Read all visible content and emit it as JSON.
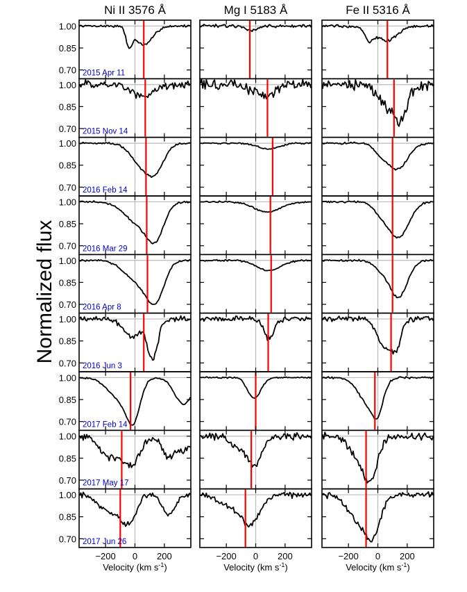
{
  "figure": {
    "ylabel": "Normalized flux",
    "xlabel_main": "Velocity (km s",
    "xlabel_sup": "-1",
    "xlabel_close": ")"
  },
  "chart_data": {
    "type": "line",
    "x_range": [
      -380,
      380
    ],
    "y_range": [
      0.64,
      1.04
    ],
    "x_ticks": [
      -200,
      0,
      200
    ],
    "x_tick_labels": [
      "−200",
      "0",
      "200"
    ],
    "y_ticks": [
      0.7,
      0.85,
      1.0
    ],
    "y_tick_labels": [
      "0.70",
      "0.85",
      "1.00"
    ],
    "grid": false,
    "reference_lines": {
      "y": 1.0,
      "x": 0
    },
    "colors": {
      "spectrum": "#000000",
      "reference": "#bbbbbb",
      "marker": "#ff0000",
      "date_label": "#0000cc"
    },
    "columns": [
      {
        "title": "Ni II 3576 Å",
        "species": "Ni II"
      },
      {
        "title": "Mg I 5183 Å",
        "species": "Mg I"
      },
      {
        "title": "Fe II 5316 Å",
        "species": "Fe II"
      }
    ],
    "epochs": [
      {
        "date": "2015 Apr 11",
        "markers": [
          60,
          -40,
          65
        ],
        "profiles": [
          {
            "noise": 0.01,
            "comps": [
              [
                -40,
                0.12,
                20
              ],
              [
                60,
                0.13,
                60
              ]
            ]
          },
          {
            "noise": 0.012,
            "comps": [
              [
                -20,
                0.03,
                40
              ]
            ]
          },
          {
            "noise": 0.012,
            "comps": [
              [
                -60,
                0.08,
                30
              ],
              [
                60,
                0.1,
                70
              ]
            ]
          }
        ]
      },
      {
        "date": "2015 Nov 14",
        "markers": [
          70,
          80,
          110
        ],
        "profiles": [
          {
            "noise": 0.035,
            "comps": [
              [
                60,
                0.08,
                80
              ]
            ]
          },
          {
            "noise": 0.045,
            "comps": [
              [
                60,
                0.07,
                80
              ]
            ]
          },
          {
            "noise": 0.045,
            "comps": [
              [
                100,
                0.18,
                80
              ],
              [
                160,
                0.12,
                30
              ]
            ]
          }
        ]
      },
      {
        "date": "2016 Feb 14",
        "markers": [
          75,
          115,
          100
        ],
        "profiles": [
          {
            "noise": 0.008,
            "comps": [
              [
                40,
                0.13,
                70
              ],
              [
                140,
                0.17,
                60
              ]
            ]
          },
          {
            "noise": 0.006,
            "comps": [
              [
                90,
                0.04,
                70
              ]
            ]
          },
          {
            "noise": 0.008,
            "comps": [
              [
                10,
                0.05,
                40
              ],
              [
                130,
                0.18,
                70
              ]
            ]
          }
        ]
      },
      {
        "date": "2016 Mar 29",
        "markers": [
          80,
          100,
          100
        ],
        "profiles": [
          {
            "noise": 0.008,
            "comps": [
              [
                20,
                0.14,
                90
              ],
              [
                140,
                0.22,
                60
              ]
            ]
          },
          {
            "noise": 0.006,
            "comps": [
              [
                80,
                0.07,
                90
              ]
            ]
          },
          {
            "noise": 0.008,
            "comps": [
              [
                20,
                0.06,
                50
              ],
              [
                140,
                0.24,
                70
              ]
            ]
          }
        ]
      },
      {
        "date": "2016 Apr 8",
        "markers": [
          85,
          105,
          100
        ],
        "profiles": [
          {
            "noise": 0.008,
            "comps": [
              [
                20,
                0.14,
                90
              ],
              [
                140,
                0.24,
                60
              ]
            ]
          },
          {
            "noise": 0.006,
            "comps": [
              [
                90,
                0.07,
                80
              ]
            ]
          },
          {
            "noise": 0.008,
            "comps": [
              [
                20,
                0.05,
                50
              ],
              [
                140,
                0.25,
                60
              ]
            ]
          }
        ]
      },
      {
        "date": "2016 Jun 3",
        "markers": [
          60,
          85,
          90
        ],
        "profiles": [
          {
            "noise": 0.022,
            "comps": [
              [
                -20,
                0.12,
                60
              ],
              [
                120,
                0.27,
                35
              ]
            ]
          },
          {
            "noise": 0.022,
            "comps": [
              [
                90,
                0.13,
                35
              ]
            ]
          },
          {
            "noise": 0.022,
            "comps": [
              [
                50,
                0.2,
                50
              ],
              [
                130,
                0.16,
                30
              ]
            ]
          }
        ]
      },
      {
        "date": "2017 Feb 14",
        "markers": [
          -30,
          0,
          -20
        ],
        "profiles": [
          {
            "noise": 0.007,
            "comps": [
              [
                -100,
                0.15,
                80
              ],
              [
                -10,
                0.24,
                45
              ],
              [
                330,
                0.18,
                60
              ]
            ]
          },
          {
            "noise": 0.006,
            "comps": [
              [
                -10,
                0.14,
                45
              ]
            ]
          },
          {
            "noise": 0.008,
            "comps": [
              [
                -60,
                0.18,
                70
              ],
              [
                0,
                0.15,
                35
              ]
            ]
          }
        ]
      },
      {
        "date": "2017 May 17",
        "markers": [
          -90,
          -30,
          -80
        ],
        "profiles": [
          {
            "noise": 0.03,
            "comps": [
              [
                -180,
                0.13,
                60
              ],
              [
                -30,
                0.2,
                60
              ],
              [
                230,
                0.14,
                40
              ],
              [
                330,
                0.1,
                40
              ]
            ]
          },
          {
            "noise": 0.03,
            "comps": [
              [
                -60,
                0.1,
                80
              ],
              [
                0,
                0.12,
                40
              ]
            ]
          },
          {
            "noise": 0.03,
            "comps": [
              [
                -100,
                0.2,
                70
              ],
              [
                -40,
                0.16,
                40
              ]
            ]
          }
        ]
      },
      {
        "date": "2017 Jun 26",
        "markers": [
          -100,
          -70,
          -80
        ],
        "profiles": [
          {
            "noise": 0.025,
            "comps": [
              [
                -170,
                0.12,
                70
              ],
              [
                -40,
                0.18,
                50
              ],
              [
                230,
                0.14,
                40
              ]
            ]
          },
          {
            "noise": 0.025,
            "comps": [
              [
                -130,
                0.08,
                100
              ],
              [
                -30,
                0.16,
                60
              ]
            ]
          },
          {
            "noise": 0.025,
            "comps": [
              [
                -120,
                0.18,
                80
              ],
              [
                -30,
                0.2,
                50
              ]
            ]
          }
        ]
      }
    ]
  }
}
